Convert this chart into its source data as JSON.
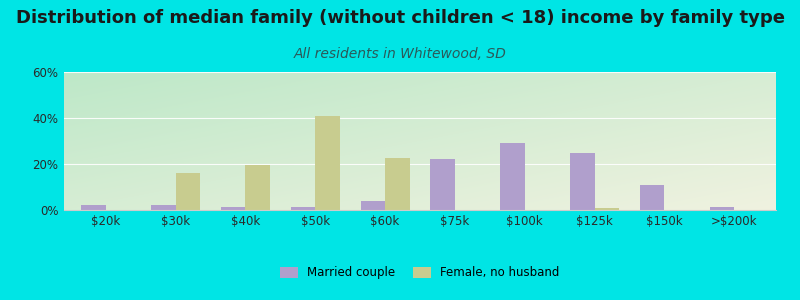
{
  "title": "Distribution of median family (without children < 18) income by family type",
  "subtitle": "All residents in Whitewood, SD",
  "categories": [
    "$20k",
    "$30k",
    "$40k",
    "$50k",
    "$60k",
    "$75k",
    "$100k",
    "$125k",
    "$150k",
    ">$200k"
  ],
  "married_couple": [
    2.0,
    2.0,
    1.5,
    1.5,
    4.0,
    22.0,
    29.0,
    25.0,
    11.0,
    1.5
  ],
  "female_no_husband": [
    0.0,
    16.0,
    19.5,
    41.0,
    22.5,
    0.0,
    0.0,
    1.0,
    0.0,
    0.0
  ],
  "married_color": "#b09fcc",
  "female_color": "#c8cc8f",
  "bg_top_left": "#bde8c8",
  "bg_bottom_right": "#f0f2e0",
  "outer_bg": "#00e5e5",
  "ylim": [
    0,
    60
  ],
  "yticks": [
    0,
    20,
    40,
    60
  ],
  "ytick_labels": [
    "0%",
    "20%",
    "40%",
    "60%"
  ],
  "bar_width": 0.35,
  "title_fontsize": 13,
  "subtitle_fontsize": 10,
  "legend_labels": [
    "Married couple",
    "Female, no husband"
  ]
}
